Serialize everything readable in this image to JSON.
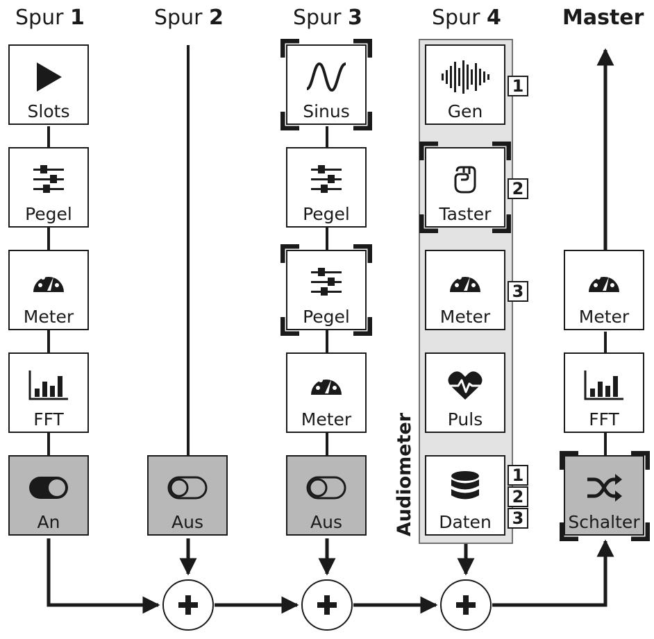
{
  "headers": {
    "spur1": {
      "prefix": "Spur ",
      "num": "1"
    },
    "spur2": {
      "prefix": "Spur ",
      "num": "2"
    },
    "spur3": {
      "prefix": "Spur ",
      "num": "3"
    },
    "spur4": {
      "prefix": "Spur ",
      "num": "4"
    },
    "master": "Master"
  },
  "group": {
    "label": "Audiometer"
  },
  "modules": {
    "t1_slots": {
      "label": "Slots",
      "icon": "play-icon"
    },
    "t1_pegel": {
      "label": "Pegel",
      "icon": "sliders-icon"
    },
    "t1_meter": {
      "label": "Meter",
      "icon": "gauge-icon"
    },
    "t1_fft": {
      "label": "FFT",
      "icon": "bar-chart-icon"
    },
    "t1_switch": {
      "label": "An",
      "icon": "toggle-on-icon"
    },
    "t2_switch": {
      "label": "Aus",
      "icon": "toggle-off-icon"
    },
    "t3_sinus": {
      "label": "Sinus",
      "icon": "sine-wave-icon"
    },
    "t3_pegel1": {
      "label": "Pegel",
      "icon": "sliders-icon"
    },
    "t3_pegel2": {
      "label": "Pegel",
      "icon": "sliders-icon"
    },
    "t3_meter": {
      "label": "Meter",
      "icon": "gauge-icon"
    },
    "t3_switch": {
      "label": "Aus",
      "icon": "toggle-off-icon"
    },
    "t4_gen": {
      "label": "Gen",
      "icon": "waveform-icon"
    },
    "t4_taster": {
      "label": "Taster",
      "icon": "fist-icon"
    },
    "t4_meter": {
      "label": "Meter",
      "icon": "gauge-icon"
    },
    "t4_puls": {
      "label": "Puls",
      "icon": "heart-pulse-icon"
    },
    "t4_daten": {
      "label": "Daten",
      "icon": "database-icon"
    },
    "m_meter": {
      "label": "Meter",
      "icon": "gauge-icon"
    },
    "m_fft": {
      "label": "FFT",
      "icon": "bar-chart-icon"
    },
    "m_schalter": {
      "label": "Schalter",
      "icon": "shuffle-icon"
    }
  },
  "badges": {
    "gen": "1",
    "taster": "2",
    "meter": "3",
    "daten_1": "1",
    "daten_2": "2",
    "daten_3": "3"
  },
  "sum_symbol": "+"
}
